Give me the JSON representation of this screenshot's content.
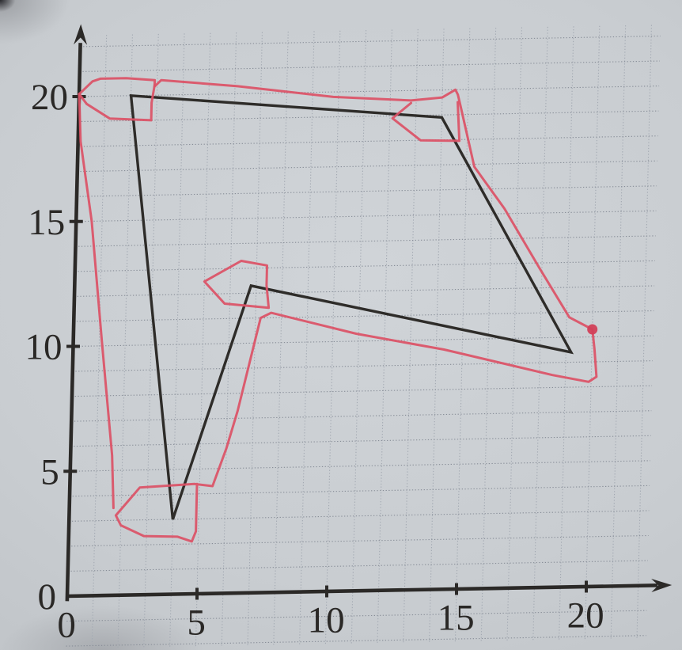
{
  "photo": {
    "paper_color": "#c9cdd1",
    "vignette_edge_color": "#9fa3a7"
  },
  "chart_data": {
    "type": "line",
    "title": "",
    "xlabel": "",
    "ylabel": "",
    "xlim": [
      0,
      23.7
    ],
    "ylim": [
      -2.2,
      23
    ],
    "grid": true,
    "grid_x_step": 1,
    "grid_y_step": 1,
    "x_tick_values": [
      0,
      5,
      10,
      15,
      20
    ],
    "x_tick_labels": [
      "0",
      "5",
      "10",
      "15",
      "20"
    ],
    "y_tick_values": [
      0,
      5,
      10,
      15,
      20
    ],
    "y_tick_labels": [
      "0",
      "5",
      "10",
      "15",
      "20"
    ],
    "axis_color": "#2b2927",
    "text_color": "#2a2826",
    "grid_color": "#878d97",
    "series": [
      {
        "name": "black-polygon",
        "kind": "closed-polygon",
        "color": "#2e2c29",
        "width": 3.4,
        "points": [
          [
            2,
            20
          ],
          [
            14,
            18.9
          ],
          [
            19.2,
            9.4
          ],
          [
            6.8,
            12.3
          ],
          [
            4,
            3
          ]
        ]
      },
      {
        "name": "red-freehand-trace",
        "kind": "freehand",
        "color": "#dc5266",
        "width": 3,
        "strokes": [
          [
            [
              0,
              20.1
            ],
            [
              0.5,
              20.6
            ],
            [
              0.8,
              20.7
            ],
            [
              1.8,
              20.7
            ],
            [
              2.9,
              20.6
            ],
            [
              2.9,
              20.35
            ],
            [
              3.15,
              20.6
            ],
            [
              6.1,
              20.3
            ],
            [
              9.8,
              19.8
            ],
            [
              12.8,
              19.6
            ],
            [
              14,
              19.7
            ],
            [
              14.5,
              20
            ],
            [
              14.6,
              19.8
            ],
            [
              14.7,
              19.4
            ],
            [
              15.3,
              16.9
            ],
            [
              16.5,
              15.2
            ],
            [
              17.9,
              12.8
            ],
            [
              19.1,
              10.8
            ],
            [
              20,
              10.3
            ],
            [
              20.1,
              9.5
            ],
            [
              20.2,
              8.4
            ],
            [
              19.9,
              8.2
            ],
            [
              18.5,
              8.5
            ],
            [
              14.3,
              9.6
            ],
            [
              10.9,
              10.3
            ],
            [
              7.6,
              11.2
            ],
            [
              7.2,
              11
            ],
            [
              6.4,
              7.3
            ],
            [
              6,
              5.8
            ],
            [
              5.5,
              4.3
            ],
            [
              4.8,
              4.4
            ],
            [
              2.7,
              4.3
            ],
            [
              1.8,
              3.2
            ],
            [
              2,
              2.8
            ],
            [
              2.9,
              2.35
            ],
            [
              4.2,
              2.3
            ],
            [
              4.75,
              2.1
            ],
            [
              4.9,
              2.5
            ],
            [
              4.9,
              4.4
            ]
          ],
          [
            [
              0,
              20.1
            ],
            [
              0.3,
              19.7
            ],
            [
              1.2,
              19.1
            ],
            [
              2.8,
              19
            ],
            [
              2.8,
              19.7
            ],
            [
              2.9,
              20.4
            ]
          ],
          [
            [
              12.8,
              19.5
            ],
            [
              12.1,
              18.9
            ],
            [
              13.2,
              18
            ],
            [
              14.7,
              17.95
            ],
            [
              14.6,
              19.5
            ]
          ],
          [
            [
              5,
              12.5
            ],
            [
              6.4,
              13.3
            ],
            [
              7.4,
              13.1
            ],
            [
              7.4,
              12.3
            ],
            [
              7.5,
              11.4
            ],
            [
              5.8,
              11.6
            ],
            [
              5,
              12.5
            ]
          ],
          [
            [
              1.7,
              3.5
            ],
            [
              1.6,
              5.6
            ],
            [
              1.1,
              10.2
            ],
            [
              0.6,
              15
            ],
            [
              0.1,
              18.2
            ],
            [
              0,
              20.1
            ]
          ]
        ],
        "dot": {
          "x": 20,
          "y": 10.3,
          "r": 6.5
        }
      }
    ]
  }
}
